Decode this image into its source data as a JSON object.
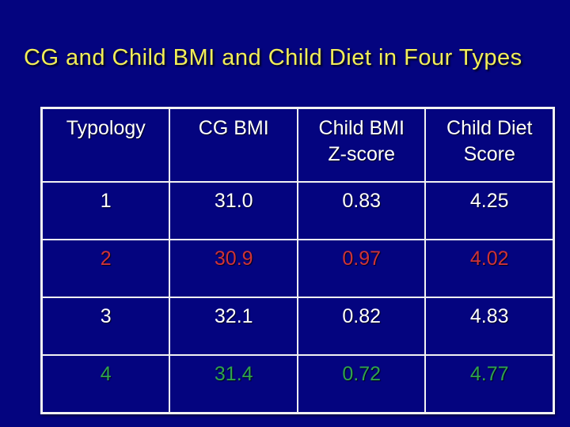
{
  "slide": {
    "title": "CG and Child BMI and Child Diet in Four Types",
    "background_color": "#04047f",
    "title_color": "#f2ee58",
    "table_border_color": "#f2f2f2"
  },
  "table": {
    "headers": [
      {
        "line1": "Typology",
        "line2": ""
      },
      {
        "line1": "CG BMI",
        "line2": ""
      },
      {
        "line1": "Child BMI",
        "line2": "Z-score"
      },
      {
        "line1": "Child Diet",
        "line2": "Score"
      }
    ],
    "rows": [
      {
        "color": "#ffffff",
        "cells": [
          "1",
          "31.0",
          "0.83",
          "4.25"
        ]
      },
      {
        "color": "#cd3338",
        "cells": [
          "2",
          "30.9",
          "0.97",
          "4.02"
        ]
      },
      {
        "color": "#ffffff",
        "cells": [
          "3",
          "32.1",
          "0.82",
          "4.83"
        ]
      },
      {
        "color": "#2fa34d",
        "cells": [
          "4",
          "31.4",
          "0.72",
          "4.77"
        ]
      }
    ]
  },
  "chart_data": {
    "type": "table",
    "title": "CG and Child BMI and Child Diet in Four Types",
    "columns": [
      "Typology",
      "CG BMI",
      "Child BMI Z-score",
      "Child Diet Score"
    ],
    "rows": [
      [
        1,
        31.0,
        0.83,
        4.25
      ],
      [
        2,
        30.9,
        0.97,
        4.02
      ],
      [
        3,
        32.1,
        0.82,
        4.83
      ],
      [
        4,
        31.4,
        0.72,
        4.77
      ]
    ]
  }
}
